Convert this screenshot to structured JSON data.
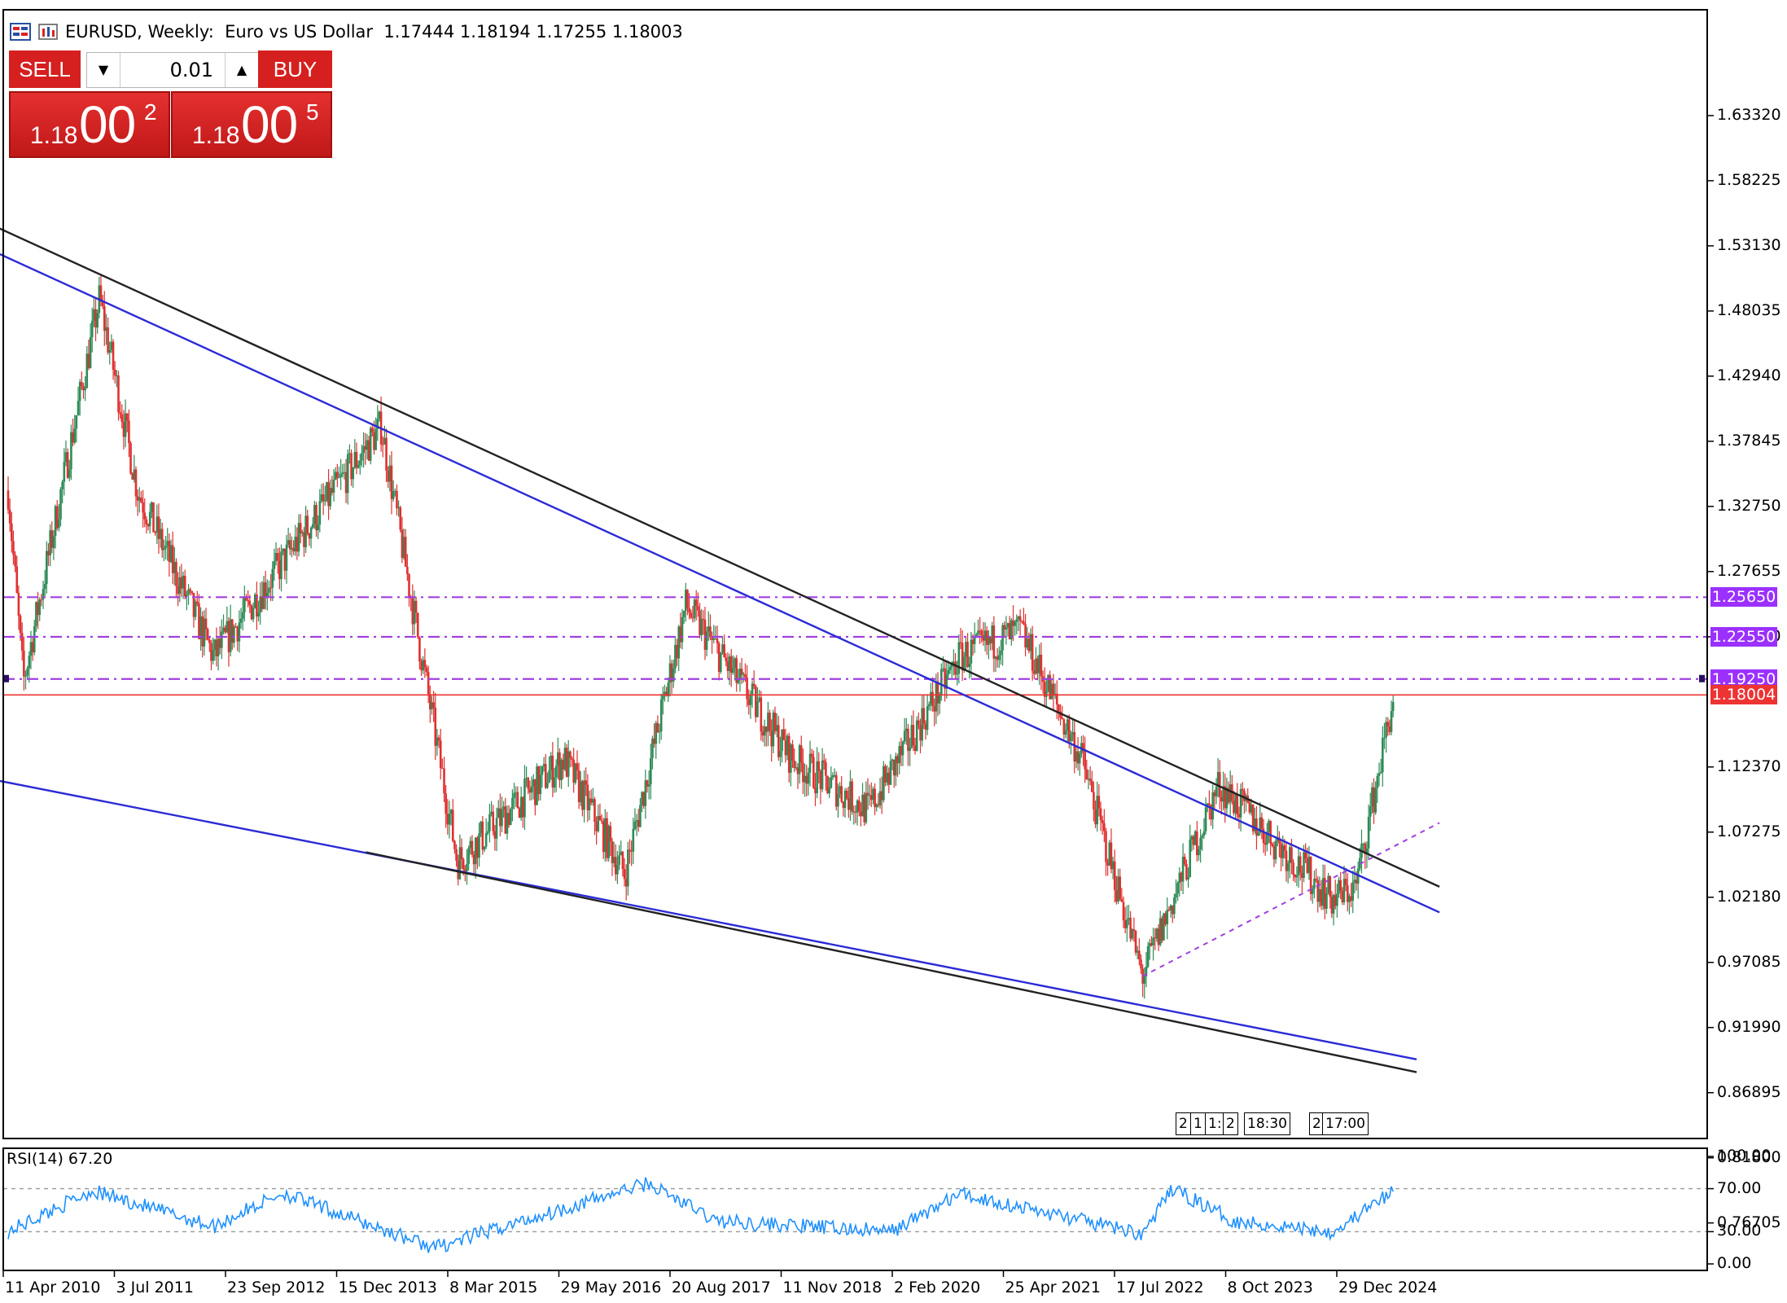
{
  "header": {
    "symbol_info": "EURUSD, Weekly:  Euro vs US Dollar  1.17444 1.18194 1.17255 1.18003"
  },
  "trade_panel": {
    "sell_label": "SELL",
    "buy_label": "BUY",
    "lot_value": "0.01",
    "sell_price": {
      "small": "1.18",
      "big": "00",
      "sup": "2"
    },
    "buy_price": {
      "small": "1.18",
      "big": "00",
      "sup": "5"
    }
  },
  "price_axis": {
    "labels": [
      "1.63320",
      "1.58225",
      "1.53130",
      "1.48035",
      "1.42940",
      "1.37845",
      "1.32750",
      "1.27655",
      "1.22550",
      "1.12370",
      "1.07275",
      "1.02180",
      "0.97085",
      "0.91990",
      "0.86895",
      "0.81800",
      "0.76705"
    ]
  },
  "price_tags": [
    {
      "label": "1.25650",
      "value": 1.2565,
      "color": "#9b30ff"
    },
    {
      "label": "1.22550",
      "value": 1.2255,
      "color": "#9b30ff"
    },
    {
      "label": "1.19250",
      "value": 1.1925,
      "color": "#9b30ff"
    },
    {
      "label": "1.18004",
      "value": 1.18004,
      "color": "#ee3333"
    }
  ],
  "time_axis": {
    "labels": [
      "11 Apr 2010",
      "3 Jul 2011",
      "23 Sep 2012",
      "15 Dec 2013",
      "8 Mar 2015",
      "29 May 2016",
      "20 Aug 2017",
      "11 Nov 2018",
      "2 Feb 2020",
      "25 Apr 2021",
      "17 Jul 2022",
      "8 Oct 2023",
      "29 Dec 2024"
    ]
  },
  "timeline_markers": [
    "2",
    "1",
    "1:",
    "2",
    "18:30",
    "2",
    "17:00"
  ],
  "rsi": {
    "label": "RSI(14) 67.20",
    "axis_labels": [
      "100.00",
      "70.00",
      "30.00",
      "0.00"
    ],
    "levels": [
      70,
      30
    ]
  },
  "colors": {
    "bull": "#2e8b57",
    "bear": "#e03030",
    "blue_line": "#2b2bd6",
    "black_line": "#222222",
    "dashed_levels": "#a040e0",
    "bid_line": "#ee3333",
    "rsi_line": "#1e90ff"
  },
  "chart_data": {
    "type": "candlestick",
    "symbol": "EURUSD",
    "timeframe": "Weekly",
    "ohlc_last": {
      "open": 1.17444,
      "high": 1.18194,
      "low": 1.17255,
      "close": 1.18003
    },
    "ylim": [
      0.735,
      1.665
    ],
    "price_path_x": [
      "2010-04",
      "2010-06",
      "2011-04",
      "2011-09",
      "2012-07",
      "2014-05",
      "2015-03",
      "2016-05",
      "2017-01",
      "2017-09",
      "2018-11",
      "2019-09",
      "2020-09",
      "2021-05",
      "2022-01",
      "2022-09",
      "2023-07",
      "2024-10",
      "2025-01",
      "2025-06"
    ],
    "price_path_y": [
      1.34,
      1.19,
      1.49,
      1.34,
      1.21,
      1.39,
      1.05,
      1.13,
      1.04,
      1.25,
      1.13,
      1.09,
      1.21,
      1.23,
      1.13,
      0.96,
      1.11,
      1.02,
      1.03,
      1.18
    ],
    "horizontal_levels": [
      1.2565,
      1.2255,
      1.1925
    ],
    "bid": 1.18004,
    "trendlines": [
      {
        "name": "upper-black",
        "color": "black",
        "x": [
          "2010-01",
          "2025-12"
        ],
        "y": [
          1.55,
          1.03
        ]
      },
      {
        "name": "upper-blue",
        "color": "blue",
        "x": [
          "2010-01",
          "2025-12"
        ],
        "y": [
          1.53,
          1.01
        ]
      },
      {
        "name": "lower-blue",
        "color": "blue",
        "x": [
          "2010-01",
          "2025-09"
        ],
        "y": [
          1.115,
          0.895
        ]
      },
      {
        "name": "lower-black",
        "color": "black",
        "x": [
          "2014-03",
          "2025-09"
        ],
        "y": [
          1.057,
          0.885
        ]
      },
      {
        "name": "dotted-support",
        "color": "purple",
        "x": [
          "2022-09",
          "2025-12"
        ],
        "y": [
          0.96,
          1.08
        ]
      }
    ],
    "rsi_path_x": [
      "2010-04",
      "2011-03",
      "2012-07",
      "2013-04",
      "2014-06",
      "2014-12",
      "2017-04",
      "2018-01",
      "2019-12",
      "2020-09",
      "2022-09",
      "2023-01",
      "2023-09",
      "2024-10",
      "2025-06"
    ],
    "rsi_path_y": [
      30,
      68,
      35,
      66,
      30,
      15,
      75,
      40,
      30,
      65,
      28,
      70,
      40,
      30,
      67.2
    ]
  }
}
